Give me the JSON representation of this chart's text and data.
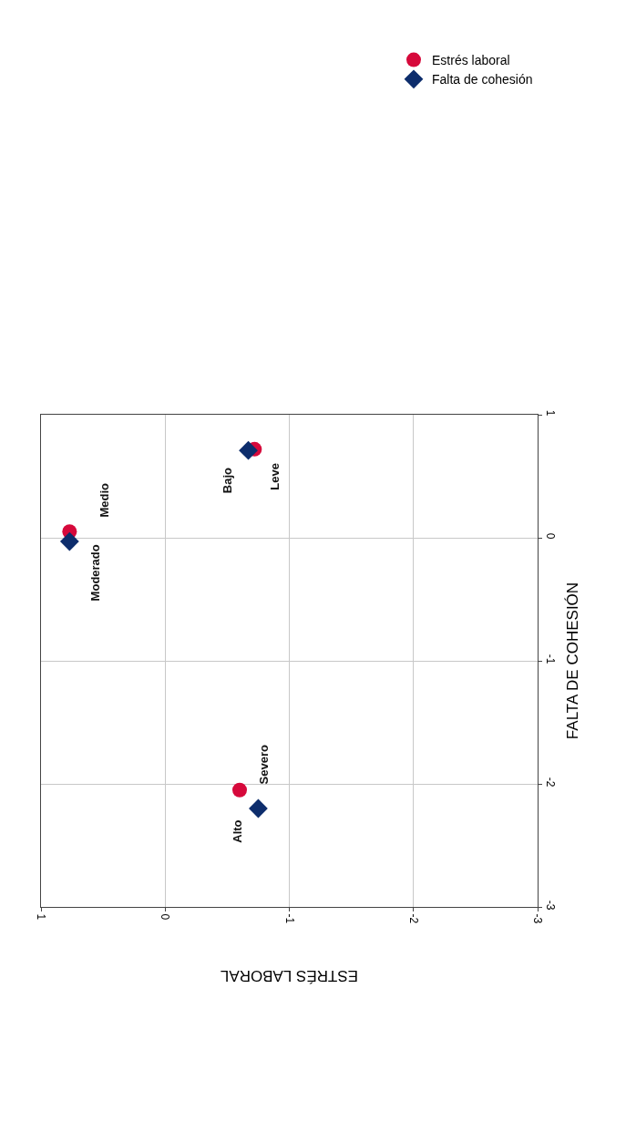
{
  "chart_data": {
    "type": "scatter",
    "xlabel": "ESTRÉS LABORAL",
    "ylabel": "FALTA DE COHESIÓN",
    "xlim": [
      1,
      -3
    ],
    "xticks": [
      1,
      0,
      -1,
      -2,
      -3
    ],
    "ylim": [
      -3,
      1
    ],
    "yticks": [
      -3,
      -2,
      -1,
      0,
      1
    ],
    "grid": true,
    "legend": "top right",
    "series": [
      {
        "name": "Estrés laboral",
        "color": "#d6093b",
        "marker": "circle",
        "x": [
          0.77,
          -0.72,
          -0.6
        ],
        "values": [
          0.05,
          0.72,
          -2.05
        ]
      },
      {
        "name": "Falta de cohesión",
        "color": "#0d2d6c",
        "marker": "diamond",
        "x": [
          0.77,
          -0.67,
          -0.75
        ],
        "values": [
          -0.03,
          0.71,
          -2.2
        ]
      }
    ],
    "annotations": [
      {
        "text": "Medio",
        "x": 0.77,
        "y": 0.05
      },
      {
        "text": "Bajo",
        "x": -0.72,
        "y": 0.72
      },
      {
        "text": "Alto",
        "x": -0.6,
        "y": -2.05
      },
      {
        "text": "Moderado",
        "x": 0.77,
        "y": -0.03
      },
      {
        "text": "Leve",
        "x": -0.67,
        "y": 0.71
      },
      {
        "text": "Severo",
        "x": -0.75,
        "y": -2.2
      }
    ]
  }
}
